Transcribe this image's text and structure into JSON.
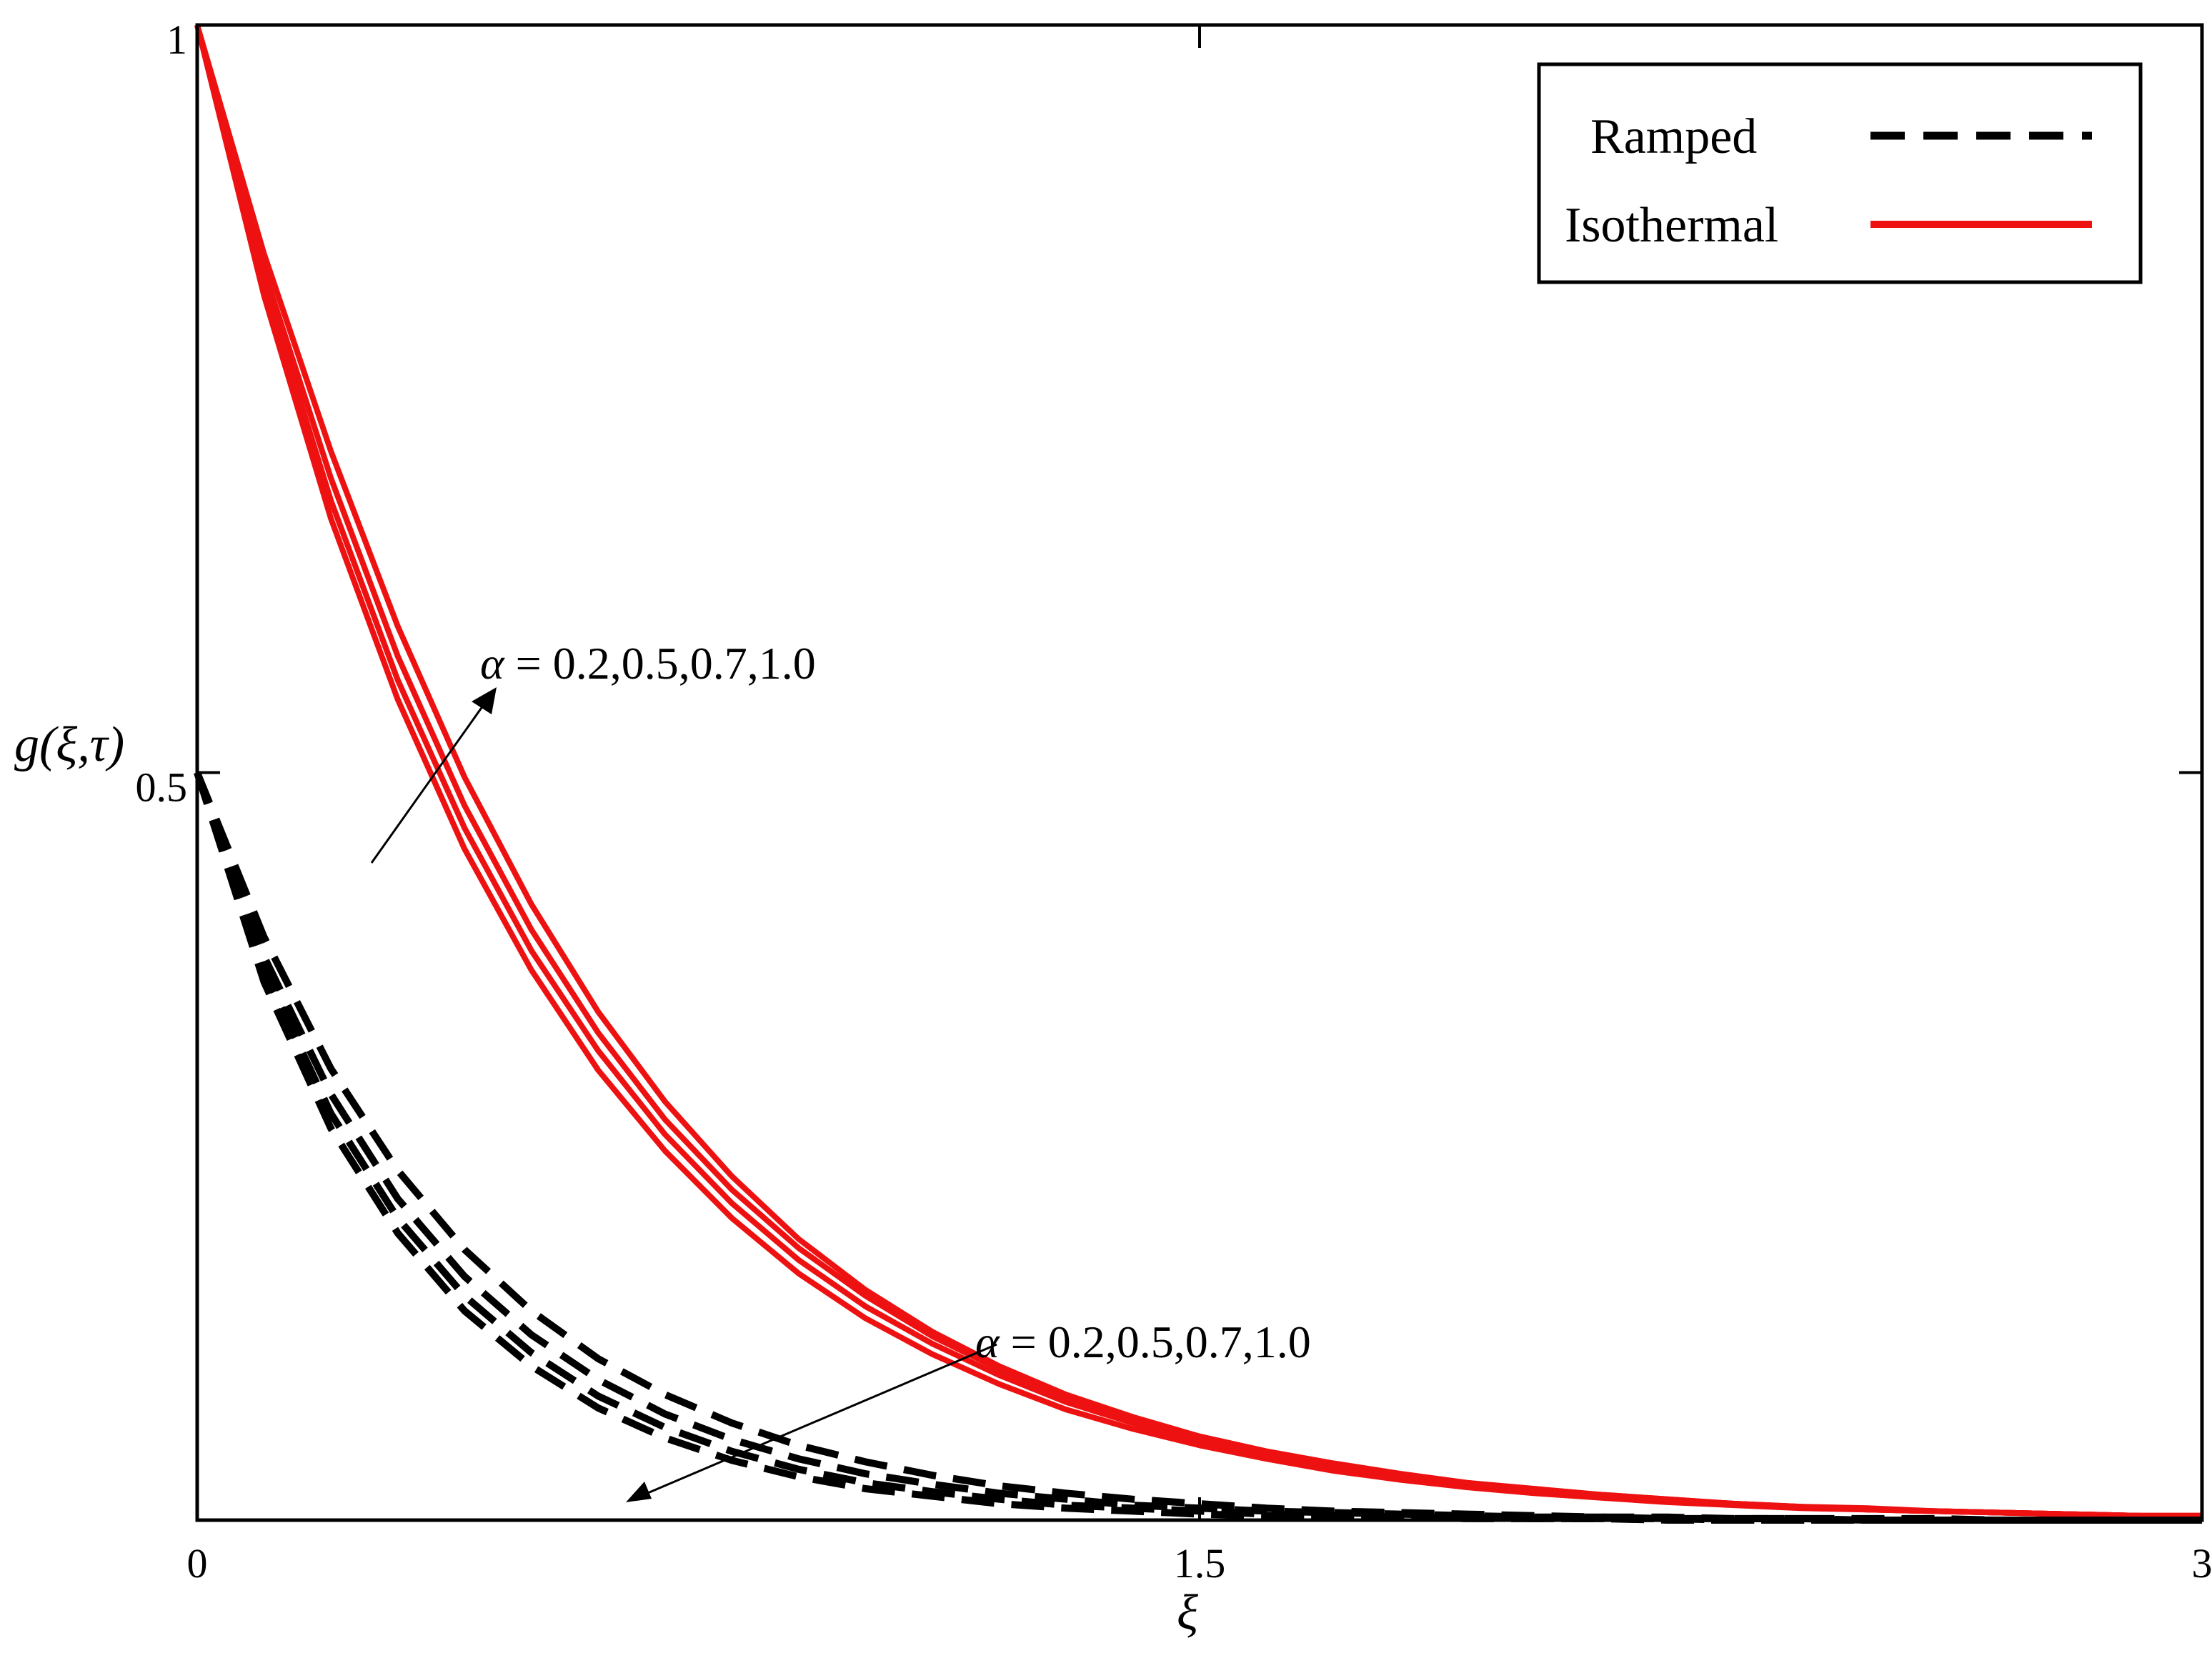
{
  "chart_data": {
    "type": "line",
    "xlabel": "ξ",
    "ylabel": "g(ξ,τ)",
    "xlim": [
      0,
      3
    ],
    "ylim": [
      0,
      1
    ],
    "xticks": [
      {
        "value": 0,
        "label": "0"
      },
      {
        "value": 1.5,
        "label": "1.5"
      },
      {
        "value": 3,
        "label": "3"
      }
    ],
    "yticks": [
      {
        "value": 0.5,
        "label": "0.5"
      },
      {
        "value": 1,
        "label": "1"
      }
    ],
    "grid": false,
    "legend_position": "top-right",
    "legend": [
      {
        "label": "Ramped",
        "style": "dashed",
        "color": "#000000"
      },
      {
        "label": "Isothermal",
        "style": "solid",
        "color": "#ee1111"
      }
    ],
    "annotations": [
      {
        "alpha_symbol": "α",
        "text": " = 0.2,0.5,0.7,1.0",
        "applies_to": "Isothermal"
      },
      {
        "alpha_symbol": "α",
        "text": " = 0.2,0.5,0.7,1.0",
        "applies_to": "Ramped"
      }
    ],
    "x": [
      0,
      0.1,
      0.2,
      0.3,
      0.4,
      0.5,
      0.6,
      0.7,
      0.8,
      0.9,
      1.0,
      1.1,
      1.2,
      1.3,
      1.4,
      1.5,
      1.6,
      1.7,
      1.8,
      1.9,
      2.0,
      2.1,
      2.2,
      2.3,
      2.4,
      2.5,
      2.6,
      2.7,
      2.8,
      2.9,
      3.0
    ],
    "series": [
      {
        "group": "Isothermal",
        "alpha": "0.2",
        "color": "#ee1111",
        "style": "solid",
        "values": [
          1.0,
          0.819,
          0.67,
          0.549,
          0.449,
          0.368,
          0.301,
          0.247,
          0.202,
          0.165,
          0.135,
          0.111,
          0.091,
          0.074,
          0.061,
          0.05,
          0.041,
          0.033,
          0.027,
          0.022,
          0.018,
          0.015,
          0.012,
          0.01,
          0.008,
          0.007,
          0.006,
          0.005,
          0.004,
          0.003,
          0.002
        ]
      },
      {
        "group": "Isothermal",
        "alpha": "0.5",
        "color": "#ee1111",
        "style": "solid",
        "values": [
          1.0,
          0.827,
          0.682,
          0.562,
          0.463,
          0.381,
          0.314,
          0.258,
          0.212,
          0.174,
          0.143,
          0.118,
          0.097,
          0.079,
          0.065,
          0.053,
          0.044,
          0.036,
          0.03,
          0.024,
          0.02,
          0.016,
          0.013,
          0.011,
          0.009,
          0.007,
          0.006,
          0.005,
          0.004,
          0.003,
          0.003
        ]
      },
      {
        "group": "Isothermal",
        "alpha": "0.7",
        "color": "#ee1111",
        "style": "solid",
        "values": [
          1.0,
          0.836,
          0.697,
          0.578,
          0.478,
          0.395,
          0.326,
          0.268,
          0.221,
          0.182,
          0.15,
          0.123,
          0.101,
          0.083,
          0.068,
          0.056,
          0.046,
          0.038,
          0.031,
          0.025,
          0.021,
          0.017,
          0.014,
          0.011,
          0.009,
          0.008,
          0.006,
          0.005,
          0.004,
          0.003,
          0.003
        ]
      },
      {
        "group": "Isothermal",
        "alpha": "1.0",
        "color": "#ee1111",
        "style": "solid",
        "values": [
          1.0,
          0.847,
          0.715,
          0.598,
          0.497,
          0.412,
          0.34,
          0.28,
          0.23,
          0.188,
          0.154,
          0.126,
          0.103,
          0.084,
          0.069,
          0.056,
          0.046,
          0.038,
          0.031,
          0.025,
          0.02,
          0.017,
          0.014,
          0.011,
          0.009,
          0.007,
          0.006,
          0.005,
          0.004,
          0.003,
          0.002
        ]
      },
      {
        "group": "Ramped",
        "alpha": "0.2",
        "color": "#000000",
        "style": "dashed",
        "values": [
          0.5,
          0.36,
          0.262,
          0.192,
          0.14,
          0.103,
          0.075,
          0.055,
          0.04,
          0.029,
          0.021,
          0.016,
          0.011,
          0.008,
          0.006,
          0.004,
          0.003,
          0.002,
          0.002,
          0.001,
          0.001,
          0.001,
          0.0,
          0.0,
          0.0,
          0.0,
          0.0,
          0.0,
          0.0,
          0.0,
          0.0
        ]
      },
      {
        "group": "Ramped",
        "alpha": "0.5",
        "color": "#000000",
        "style": "dashed",
        "values": [
          0.5,
          0.368,
          0.272,
          0.202,
          0.15,
          0.112,
          0.083,
          0.062,
          0.046,
          0.034,
          0.025,
          0.019,
          0.014,
          0.01,
          0.008,
          0.006,
          0.004,
          0.003,
          0.002,
          0.002,
          0.001,
          0.001,
          0.001,
          0.0,
          0.0,
          0.0,
          0.0,
          0.0,
          0.0,
          0.0,
          0.0
        ]
      },
      {
        "group": "Ramped",
        "alpha": "0.7",
        "color": "#000000",
        "style": "dashed",
        "values": [
          0.5,
          0.377,
          0.285,
          0.215,
          0.163,
          0.124,
          0.094,
          0.071,
          0.054,
          0.041,
          0.031,
          0.024,
          0.018,
          0.014,
          0.01,
          0.008,
          0.006,
          0.005,
          0.004,
          0.003,
          0.002,
          0.002,
          0.001,
          0.001,
          0.001,
          0.0,
          0.0,
          0.0,
          0.0,
          0.0,
          0.0
        ]
      },
      {
        "group": "Ramped",
        "alpha": "1.0",
        "color": "#000000",
        "style": "dashed",
        "values": [
          0.5,
          0.39,
          0.302,
          0.234,
          0.181,
          0.14,
          0.108,
          0.084,
          0.065,
          0.05,
          0.039,
          0.03,
          0.023,
          0.018,
          0.014,
          0.011,
          0.008,
          0.006,
          0.005,
          0.004,
          0.003,
          0.002,
          0.002,
          0.001,
          0.001,
          0.001,
          0.001,
          0.0,
          0.0,
          0.0,
          0.0
        ]
      }
    ]
  }
}
